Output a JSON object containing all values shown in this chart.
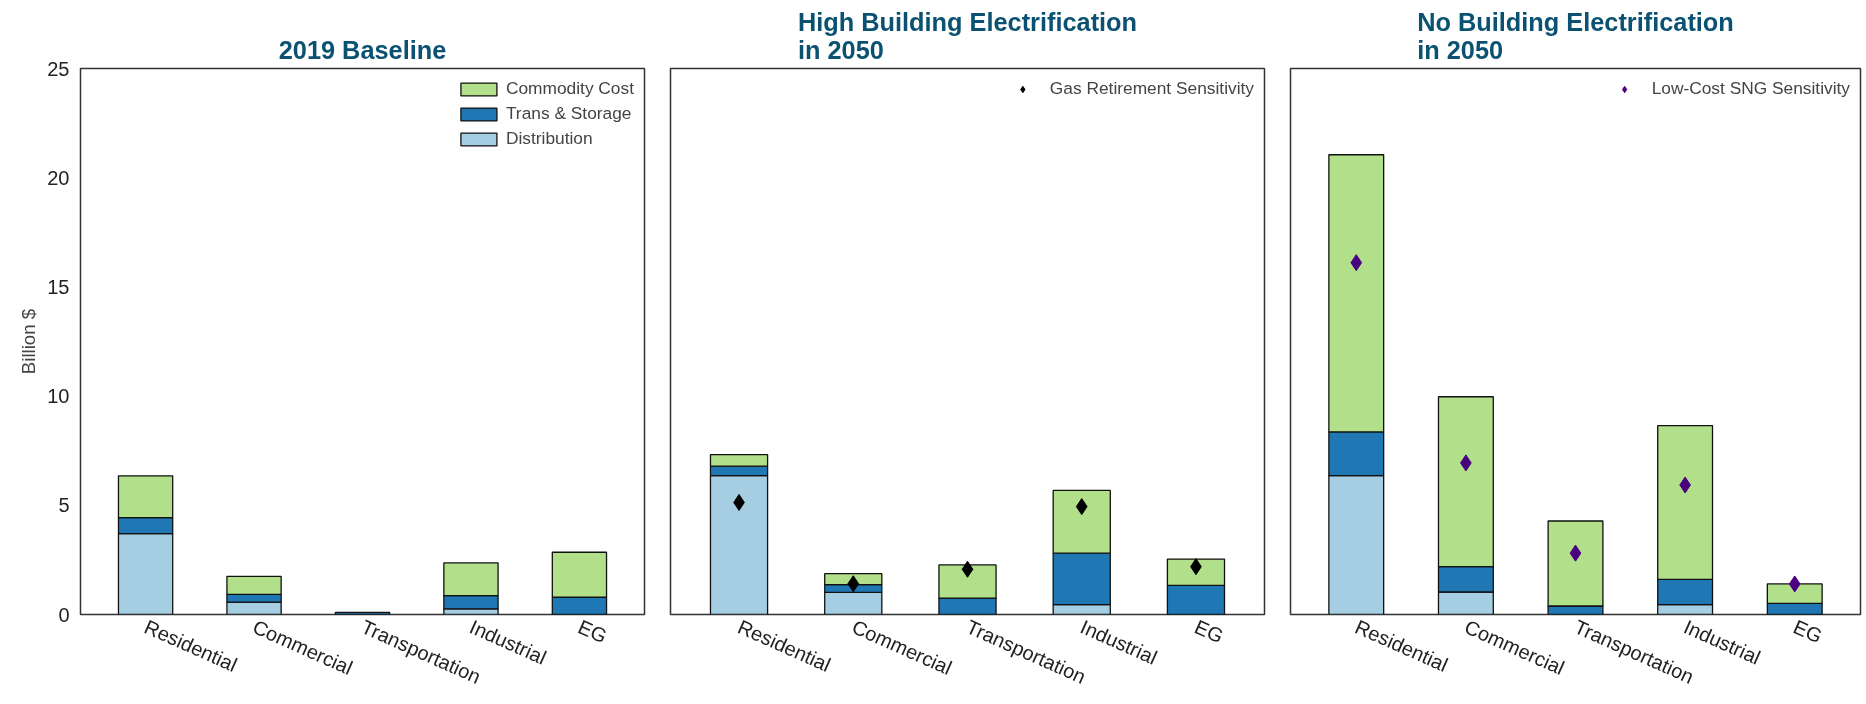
{
  "chart_data": [
    {
      "type": "bar",
      "title": "2019 Baseline",
      "ylabel": "Billion $",
      "stacked": true,
      "categories": [
        "Residential",
        "Commercial",
        "Transportation",
        "Industrial",
        "EG"
      ],
      "ylim": [
        0,
        25
      ],
      "yticks": [
        0,
        5,
        10,
        15,
        20,
        25
      ],
      "grid": false,
      "legend": "top right",
      "series": [
        {
          "name": "Distribution",
          "color": "#a6cee3",
          "values": [
            3.7,
            0.57,
            null,
            0.26,
            0
          ]
        },
        {
          "name": "Trans & Storage",
          "color": "#1f78b4",
          "values": [
            0.74,
            0.35,
            0.1,
            0.6,
            0.79
          ]
        },
        {
          "name": "Commodity Cost",
          "color": "#b2df8a",
          "values": [
            1.91,
            0.83,
            null,
            1.5,
            2.06
          ]
        }
      ]
    },
    {
      "type": "bar",
      "title": "High Building Electrification\nin 2050",
      "stacked": true,
      "categories": [
        "Residential",
        "Commercial",
        "Transportation",
        "Industrial",
        "EG"
      ],
      "ylim": [
        0,
        25
      ],
      "yticks": [
        0,
        5,
        10,
        15,
        20,
        25
      ],
      "tick_labels": "x",
      "grid": false,
      "legend": "top right",
      "series": [
        {
          "color": "#a6cee3",
          "values": [
            6.36,
            1.01,
            null,
            0.45,
            0
          ]
        },
        {
          "color": "#1f78b4",
          "values": [
            0.43,
            0.36,
            0.75,
            2.36,
            1.33
          ]
        },
        {
          "color": "#b2df8a",
          "values": [
            0.53,
            0.5,
            1.52,
            2.87,
            1.21
          ]
        },
        {
          "type": "scatter",
          "marker": "diamond",
          "name": "Gas Retirement Sensitivity",
          "color": "#000000",
          "values": [
            5.13,
            1.41,
            2.07,
            4.94,
            2.19
          ]
        }
      ]
    },
    {
      "type": "bar",
      "title": "No Building Electrification\nin 2050",
      "stacked": true,
      "categories": [
        "Residential",
        "Commercial",
        "Transportation",
        "Industrial",
        "EG"
      ],
      "ylim": [
        0,
        25
      ],
      "yticks": [
        0,
        5,
        10,
        15,
        20,
        25
      ],
      "tick_labels": "x",
      "grid": false,
      "legend": "top right",
      "series": [
        {
          "color": "#a6cee3",
          "values": [
            6.36,
            1.03,
            null,
            0.45,
            0
          ]
        },
        {
          "color": "#1f78b4",
          "values": [
            2.0,
            1.16,
            0.39,
            1.16,
            0.51
          ]
        },
        {
          "color": "#b2df8a",
          "values": [
            12.69,
            7.78,
            3.89,
            7.04,
            0.89
          ]
        },
        {
          "type": "scatter",
          "marker": "diamond",
          "name": "Low-Cost SNG Sensitivity",
          "color": "#4b0082",
          "values": [
            16.11,
            6.94,
            2.81,
            5.93,
            1.4
          ]
        }
      ]
    }
  ]
}
